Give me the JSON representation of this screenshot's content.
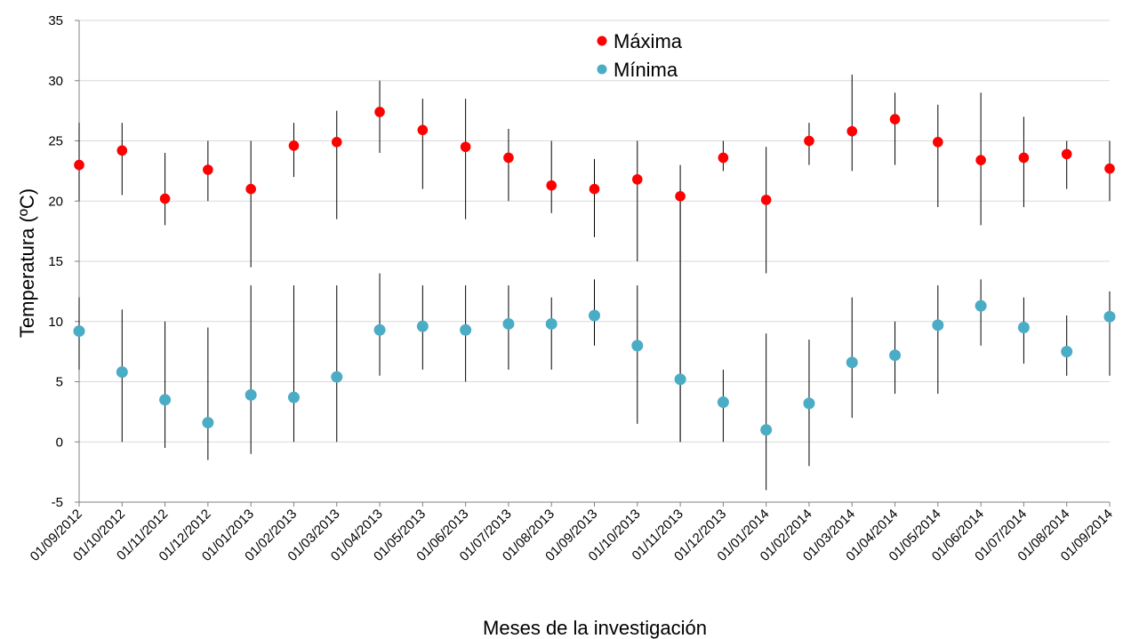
{
  "chart_data": {
    "type": "scatter",
    "title": "",
    "xlabel": "Meses de la investigación",
    "ylabel": "Temperatura (ºC)",
    "ylim": [
      -5,
      35
    ],
    "yticks": [
      -5,
      0,
      5,
      10,
      15,
      20,
      25,
      30,
      35
    ],
    "grid": "horizontal",
    "legend_position": "top-center",
    "categories": [
      "01/09/2012",
      "01/10/2012",
      "01/11/2012",
      "01/12/2012",
      "01/01/2013",
      "01/02/2013",
      "01/03/2013",
      "01/04/2013",
      "01/05/2013",
      "01/06/2013",
      "01/07/2013",
      "01/08/2013",
      "01/09/2013",
      "01/10/2013",
      "01/11/2013",
      "01/12/2013",
      "01/01/2014",
      "01/02/2014",
      "01/03/2014",
      "01/04/2014",
      "01/05/2014",
      "01/06/2014",
      "01/07/2014",
      "01/08/2014",
      "01/09/2014"
    ],
    "series": [
      {
        "name": "Máxima",
        "color": "#ff0000",
        "values": [
          23.0,
          24.2,
          20.2,
          22.6,
          21.0,
          24.6,
          24.9,
          27.4,
          25.9,
          24.5,
          23.6,
          21.3,
          21.0,
          21.8,
          20.4,
          23.6,
          20.1,
          25.0,
          25.8,
          26.8,
          24.9,
          23.4,
          23.6,
          23.9,
          22.7
        ],
        "ranges": [
          [
            20,
            26.5
          ],
          [
            20.5,
            26.5
          ],
          [
            18,
            24
          ],
          [
            20,
            25
          ],
          [
            14.5,
            25
          ],
          [
            22,
            26.5
          ],
          [
            18.5,
            27.5
          ],
          [
            24,
            30
          ],
          [
            21,
            28.5
          ],
          [
            18.5,
            28.5
          ],
          [
            20,
            26
          ],
          [
            19,
            25
          ],
          [
            17,
            23.5
          ],
          [
            15,
            25
          ],
          [
            0,
            23
          ],
          [
            22.5,
            25
          ],
          [
            14,
            24.5
          ],
          [
            23,
            26.5
          ],
          [
            22.5,
            30.5
          ],
          [
            23,
            29
          ],
          [
            19.5,
            28
          ],
          [
            18,
            29
          ],
          [
            19.5,
            27
          ],
          [
            21,
            25
          ],
          [
            20,
            25
          ]
        ]
      },
      {
        "name": "Mínima",
        "color": "#4bacc6",
        "values": [
          9.2,
          5.8,
          3.5,
          1.6,
          3.9,
          3.7,
          5.4,
          9.3,
          9.6,
          9.3,
          9.8,
          9.8,
          10.5,
          8.0,
          5.2,
          3.3,
          1.0,
          3.2,
          6.6,
          7.2,
          9.7,
          11.3,
          9.5,
          7.5,
          10.4
        ],
        "ranges": [
          [
            6,
            12
          ],
          [
            0,
            11
          ],
          [
            -0.5,
            10
          ],
          [
            -1.5,
            9.5
          ],
          [
            -1,
            13
          ],
          [
            0,
            13
          ],
          [
            0,
            13
          ],
          [
            5.5,
            14
          ],
          [
            6,
            13
          ],
          [
            5,
            13
          ],
          [
            6,
            13
          ],
          [
            6,
            12
          ],
          [
            8,
            13.5
          ],
          [
            1.5,
            13
          ],
          [
            0,
            21
          ],
          [
            0,
            6
          ],
          [
            -4,
            9
          ],
          [
            -2,
            8.5
          ],
          [
            2,
            12
          ],
          [
            4,
            10
          ],
          [
            4,
            13
          ],
          [
            8,
            13.5
          ],
          [
            6.5,
            12
          ],
          [
            5.5,
            10.5
          ],
          [
            5.5,
            12.5
          ]
        ]
      }
    ]
  }
}
